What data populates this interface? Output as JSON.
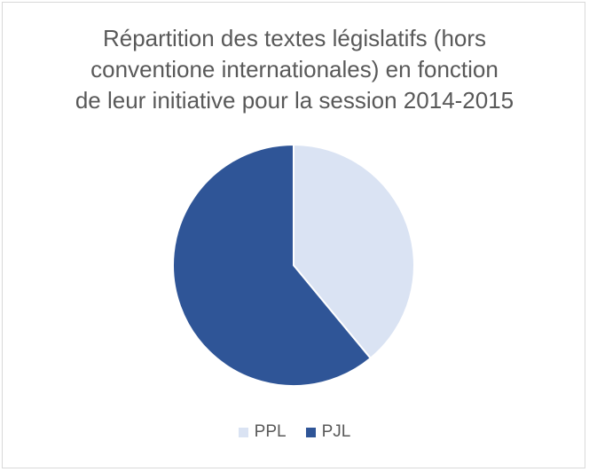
{
  "chart_data": {
    "type": "pie",
    "title_lines": [
      "Répartition des textes législatifs (hors",
      "conventione internationales) en fonction",
      "de leur initiative pour la session 2014-2015"
    ],
    "categories": [
      "PPL",
      "PJL"
    ],
    "values": [
      39,
      61
    ],
    "colors": [
      "#dae3f3",
      "#2f5597"
    ],
    "legend_position": "bottom",
    "start_angle_deg": 0,
    "direction": "clockwise"
  }
}
